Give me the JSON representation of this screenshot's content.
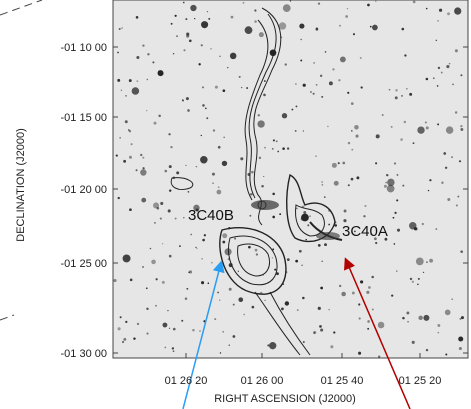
{
  "figure": {
    "y_axis_label": "DECLINATION  (J2000)",
    "x_axis_label": "RIGHT ASCENSION  (J2000)",
    "y_tick_labels": [
      "-01 10 00",
      "-01 15 00",
      "-01 20 00",
      "-01 25 00",
      "-01 30 00"
    ],
    "x_tick_labels": [
      "01 26 20",
      "01 26 00",
      "01 25 40",
      "01 25 20"
    ],
    "annotations": [
      "3C40B",
      "3C40A"
    ]
  }
}
